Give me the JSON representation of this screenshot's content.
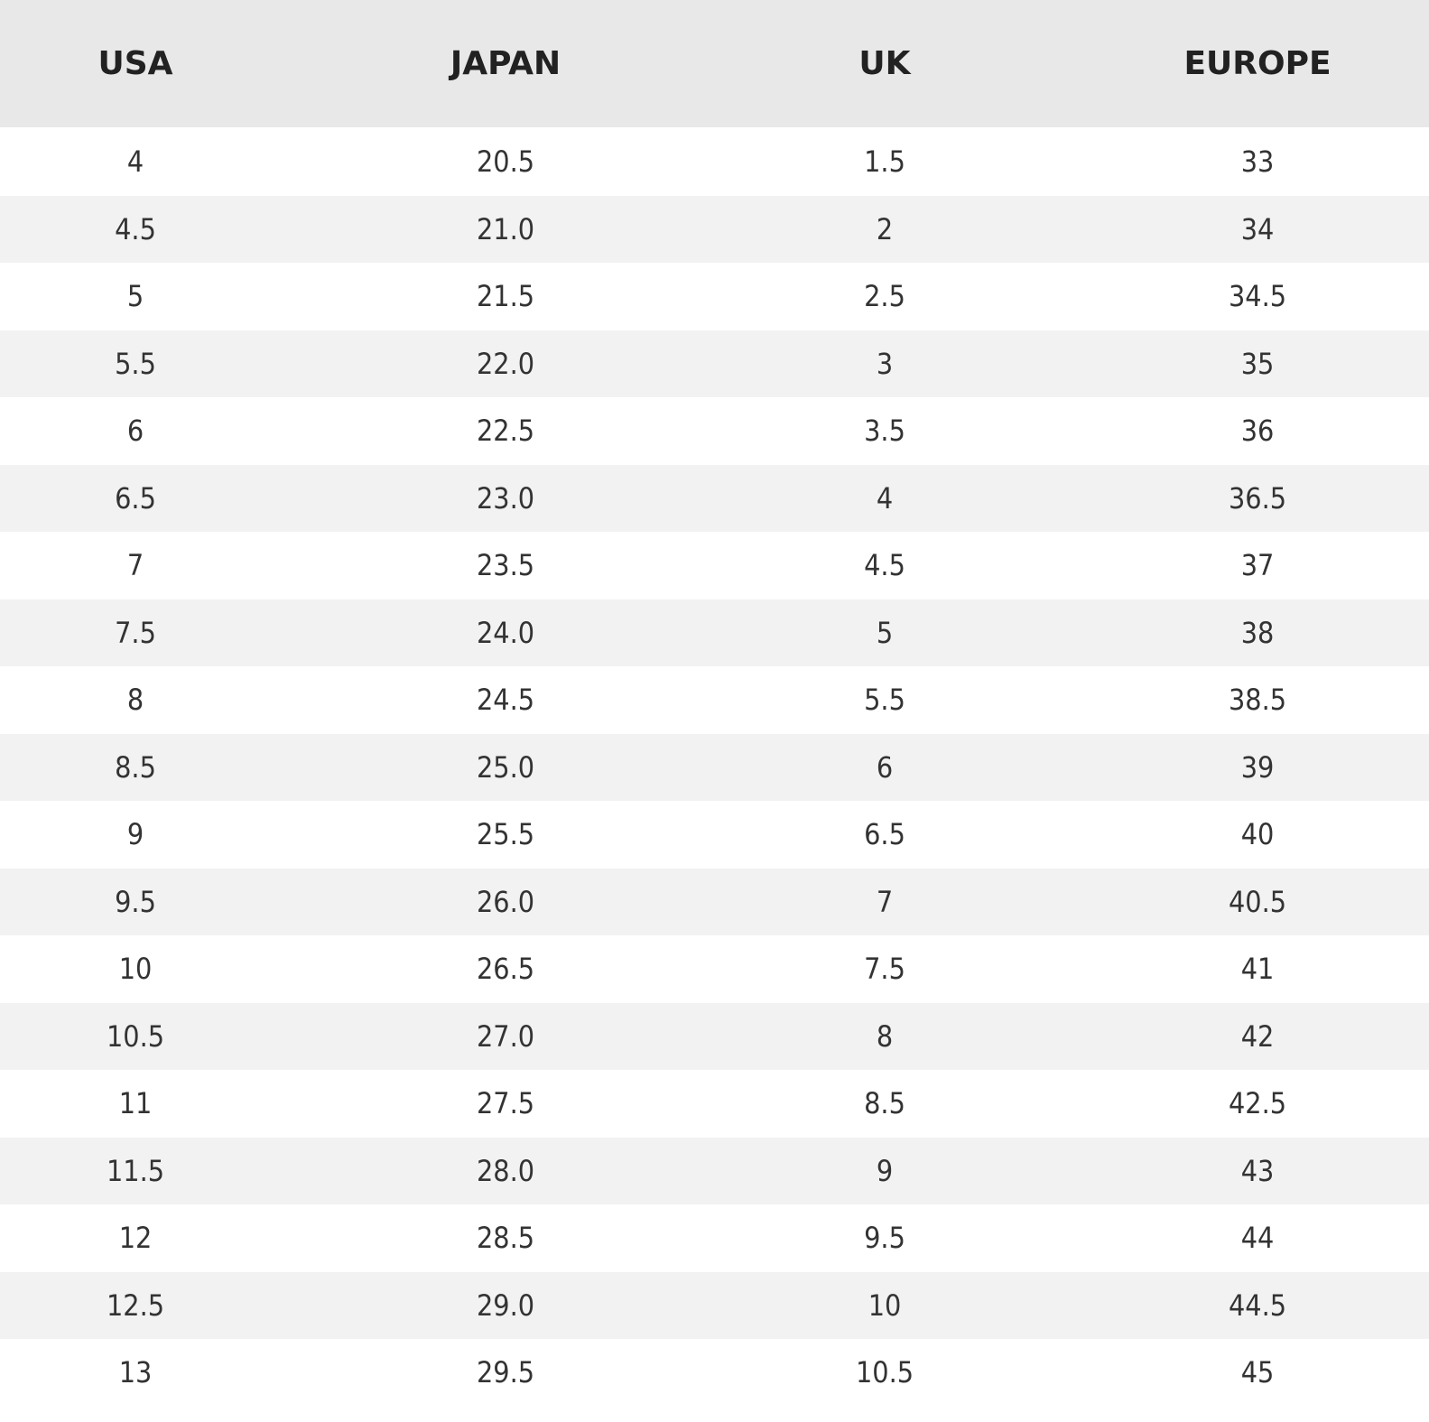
{
  "table": {
    "header": [
      "USA",
      "JAPAN",
      "UK",
      "EUROPE"
    ],
    "rows": [
      [
        "4",
        "20.5",
        "1.5",
        "33"
      ],
      [
        "4.5",
        "21.0",
        "2",
        "34"
      ],
      [
        "5",
        "21.5",
        "2.5",
        "34.5"
      ],
      [
        "5.5",
        "22.0",
        "3",
        "35"
      ],
      [
        "6",
        "22.5",
        "3.5",
        "36"
      ],
      [
        "6.5",
        "23.0",
        "4",
        "36.5"
      ],
      [
        "7",
        "23.5",
        "4.5",
        "37"
      ],
      [
        "7.5",
        "24.0",
        "5",
        "38"
      ],
      [
        "8",
        "24.5",
        "5.5",
        "38.5"
      ],
      [
        "8.5",
        "25.0",
        "6",
        "39"
      ],
      [
        "9",
        "25.5",
        "6.5",
        "40"
      ],
      [
        "9.5",
        "26.0",
        "7",
        "40.5"
      ],
      [
        "10",
        "26.5",
        "7.5",
        "41"
      ],
      [
        "10.5",
        "27.0",
        "8",
        "42"
      ],
      [
        "11",
        "27.5",
        "8.5",
        "42.5"
      ],
      [
        "11.5",
        "28.0",
        "9",
        "43"
      ],
      [
        "12",
        "28.5",
        "9.5",
        "44"
      ],
      [
        "12.5",
        "29.0",
        "10",
        "44.5"
      ],
      [
        "13",
        "29.5",
        "10.5",
        "45"
      ]
    ]
  }
}
